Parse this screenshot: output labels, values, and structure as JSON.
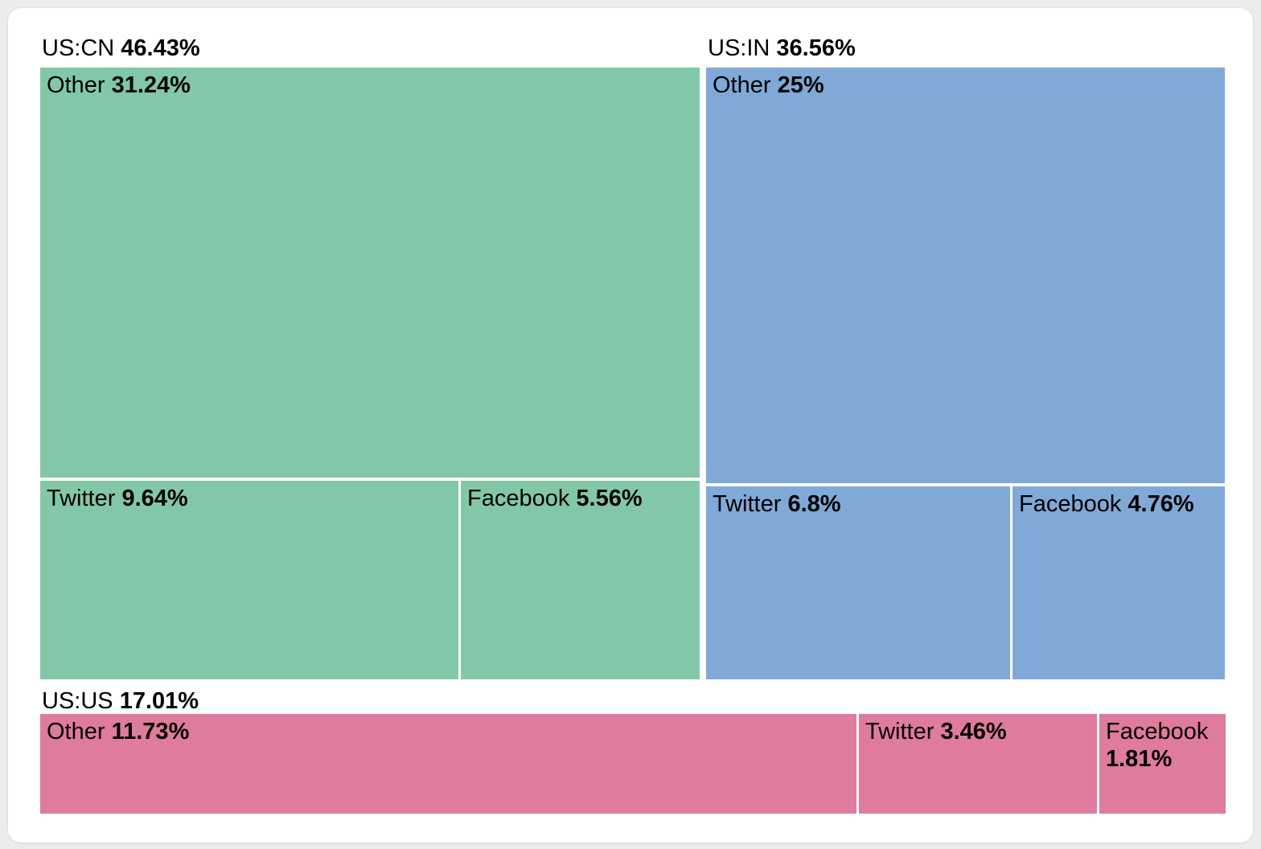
{
  "chart_data": {
    "type": "treemap",
    "groups": [
      {
        "label": "US:CN",
        "value": 46.43,
        "value_display": "46.43%",
        "color": "#82c8a8",
        "children": [
          {
            "label": "Other",
            "value": 31.24,
            "value_display": "31.24%"
          },
          {
            "label": "Twitter",
            "value": 9.64,
            "value_display": "9.64%"
          },
          {
            "label": "Facebook",
            "value": 5.56,
            "value_display": "5.56%"
          }
        ]
      },
      {
        "label": "US:IN",
        "value": 36.56,
        "value_display": "36.56%",
        "color": "#80a9d7",
        "children": [
          {
            "label": "Other",
            "value": 25,
            "value_display": "25%"
          },
          {
            "label": "Twitter",
            "value": 6.8,
            "value_display": "6.8%"
          },
          {
            "label": "Facebook",
            "value": 4.76,
            "value_display": "4.76%"
          }
        ]
      },
      {
        "label": "US:US",
        "value": 17.01,
        "value_display": "17.01%",
        "color": "#df7b9b",
        "children": [
          {
            "label": "Other",
            "value": 11.73,
            "value_display": "11.73%"
          },
          {
            "label": "Twitter",
            "value": 3.46,
            "value_display": "3.46%"
          },
          {
            "label": "Facebook",
            "value": 1.81,
            "value_display": "1.81%"
          }
        ]
      }
    ],
    "colors": {
      "page_background": "#ebecee",
      "card_background": "#ffffff",
      "text": "#000000"
    }
  }
}
